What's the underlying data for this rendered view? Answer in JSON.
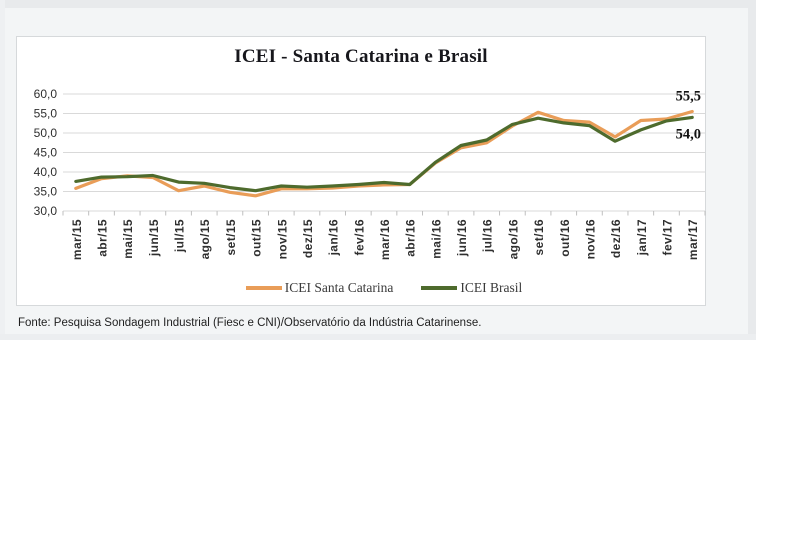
{
  "page": {
    "document_background": "#f3f5f6",
    "page_background": "#ffffff"
  },
  "chart_data": {
    "type": "line",
    "title": "ICEI - Santa Catarina e Brasil",
    "categories": [
      "mar/15",
      "abr/15",
      "mai/15",
      "jun/15",
      "jul/15",
      "ago/15",
      "set/15",
      "out/15",
      "nov/15",
      "dez/15",
      "jan/16",
      "fev/16",
      "mar/16",
      "abr/16",
      "mai/16",
      "jun/16",
      "jul/16",
      "ago/16",
      "set/16",
      "out/16",
      "nov/16",
      "dez/16",
      "jan/17",
      "fev/17",
      "mar/17"
    ],
    "series": [
      {
        "name": "ICEI Santa Catarina",
        "color": "#E99D58",
        "values": [
          35.8,
          38.3,
          39.0,
          38.6,
          35.2,
          36.4,
          34.8,
          33.9,
          35.7,
          35.7,
          35.9,
          36.4,
          36.7,
          36.8,
          42.3,
          46.2,
          47.5,
          51.8,
          55.3,
          53.2,
          52.8,
          49.0,
          53.2,
          53.6,
          55.5
        ],
        "end_label": "55,5",
        "end_label_position": "above"
      },
      {
        "name": "ICEI Brasil",
        "color": "#4E6B2D",
        "values": [
          37.6,
          38.7,
          38.8,
          39.1,
          37.4,
          37.1,
          36.0,
          35.2,
          36.4,
          36.1,
          36.4,
          36.8,
          37.3,
          36.8,
          42.5,
          46.8,
          48.2,
          52.2,
          53.8,
          52.6,
          51.9,
          47.9,
          50.8,
          53.1,
          54.0
        ],
        "end_label": "54,0",
        "end_label_position": "below"
      }
    ],
    "ylim": [
      30,
      60
    ],
    "ytick_step": 5,
    "ytick_labels": [
      "60,0",
      "55,0",
      "50,0",
      "45,0",
      "40,0",
      "35,0",
      "30,0"
    ],
    "grid": "horizontal",
    "gridline_color": "#d9d9d9",
    "tick_color": "#bfbfbf",
    "axis_text_color": "#2f2f2f",
    "legend_position": "bottom"
  },
  "footer": {
    "source": "Fonte: Pesquisa Sondagem Industrial (Fiesc e CNI)/Observatório da Indústria Catarinense."
  }
}
